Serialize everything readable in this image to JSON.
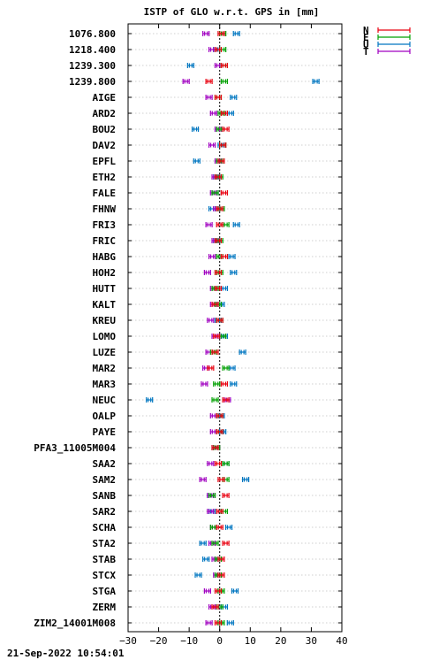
{
  "chart_data": {
    "type": "scatter",
    "title": "ISTP of GLO w.r.t. GPS in [mm]",
    "xlim": [
      -30,
      40
    ],
    "xticks": [
      -30,
      -20,
      -10,
      0,
      10,
      20,
      30,
      40
    ],
    "grid": true,
    "legend_position": "top-right",
    "categories": [
      "1076.800",
      "1218.400",
      "1239.300",
      "1239.800",
      "AIGE",
      "ARD2",
      "BOU2",
      "DAV2",
      "EPFL",
      "ETH2",
      "FALE",
      "FHNW",
      "FRI3",
      "FRIC",
      "HABG",
      "HOH2",
      "HUTT",
      "KALT",
      "KREU",
      "LOMO",
      "LUZE",
      "MAR2",
      "MAR3",
      "NEUC",
      "OALP",
      "PAYE",
      "PFA3_11005M004",
      "SAA2",
      "SAM2",
      "SANB",
      "SAR2",
      "SCHA",
      "STA2",
      "STAB",
      "STCX",
      "STGA",
      "ZERM",
      "ZIM2_14001M008"
    ],
    "series": [
      {
        "name": "N",
        "color": "#e8000f",
        "values": [
          0.5,
          -0.5,
          1.5,
          -3.5,
          -0.5,
          1.5,
          2,
          1,
          0.5,
          -0.5,
          1.5,
          0,
          0,
          -0.5,
          1.5,
          -0.5,
          -0.5,
          -1.5,
          0,
          -1,
          -1.5,
          -3,
          1.5,
          2,
          0,
          0,
          -1.5,
          -0.5,
          0.5,
          2,
          0,
          0,
          2,
          0.5,
          0.5,
          -0.5,
          -1.5,
          -0.5
        ]
      },
      {
        "name": "E",
        "color": "#00a000",
        "values": [
          1,
          1,
          1.5,
          1.5,
          -0.5,
          0.5,
          0,
          1,
          0,
          0,
          -1.5,
          0.5,
          2,
          0,
          0,
          0,
          -1.5,
          -0.5,
          0,
          1,
          -2,
          2,
          -1,
          -1.5,
          0,
          0,
          -1,
          2,
          2,
          -2.5,
          1.5,
          -2,
          -1.5,
          -0.5,
          -0.5,
          0.5,
          0,
          0.5
        ]
      },
      {
        "name": "U",
        "color": "#0076c0",
        "values": [
          5.5,
          -1,
          -9.5,
          31.5,
          4.5,
          3.5,
          -8,
          0.5,
          -7.5,
          -1,
          -1.5,
          -2.5,
          5.5,
          -1,
          4,
          4.5,
          1.5,
          0.5,
          -0.5,
          1.5,
          7.5,
          4,
          4.5,
          -23,
          0.5,
          1,
          -1.5,
          2,
          8.5,
          -3,
          -2.5,
          3,
          -5.5,
          -4.5,
          -7,
          5,
          1.5,
          3.5
        ]
      },
      {
        "name": "T",
        "color": "#a000c0",
        "values": [
          -4.5,
          -2.5,
          -0.5,
          -11,
          -3.5,
          -2,
          -0.5,
          -2.5,
          -0.5,
          -1.5,
          -2,
          -1,
          -3.5,
          -1.5,
          -2.5,
          -4,
          -2,
          -2,
          -3,
          -1.5,
          -3.5,
          -4.5,
          -5,
          2.5,
          -2,
          -2,
          -1,
          -3,
          -5.5,
          -3,
          -3,
          -2,
          -2.5,
          -1.5,
          -1,
          -4,
          -2.5,
          -3.5
        ]
      }
    ]
  },
  "footer": "21-Sep-2022 10:54:01"
}
